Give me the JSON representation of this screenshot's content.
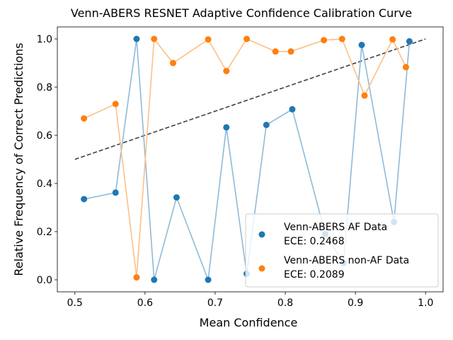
{
  "chart_data": {
    "type": "line",
    "title": "Venn-ABERS RESNET Adaptive Confidence Calibration Curve",
    "xlabel": "Mean Confidence",
    "ylabel": "Relative Frequency of Correct Predictions",
    "xlim": [
      0.475,
      1.025
    ],
    "ylim": [
      -0.05,
      1.05
    ],
    "xticks": [
      "0.5",
      "0.6",
      "0.7",
      "0.8",
      "0.9",
      "1.0"
    ],
    "xtick_values": [
      0.5,
      0.6,
      0.7,
      0.8,
      0.9,
      1.0
    ],
    "yticks": [
      "0.0",
      "0.2",
      "0.4",
      "0.6",
      "0.8",
      "1.0"
    ],
    "ytick_values": [
      0.0,
      0.2,
      0.4,
      0.6,
      0.8,
      1.0
    ],
    "grid": false,
    "legend_position": "lower-right",
    "reference_line": {
      "x": [
        0.5,
        1.0
      ],
      "y": [
        0.5,
        1.0
      ],
      "color": "#404040",
      "style": "dashed"
    },
    "series": [
      {
        "name": "Venn-ABERS AF Data",
        "ece_label": "ECE: 0.2468",
        "color": "#1f77b4",
        "line_color": "#8fbad9",
        "x": [
          0.513,
          0.558,
          0.588,
          0.613,
          0.645,
          0.69,
          0.716,
          0.745,
          0.773,
          0.81,
          0.857,
          0.883,
          0.909,
          0.955,
          0.977
        ],
        "y": [
          0.335,
          0.362,
          1.0,
          0.0,
          0.342,
          0.0,
          0.633,
          0.025,
          0.643,
          0.708,
          0.19,
          0.07,
          0.975,
          0.24,
          0.99
        ]
      },
      {
        "name": "Venn-ABERS non-AF Data",
        "ece_label": "ECE: 0.2089",
        "color": "#ff7f0e",
        "line_color": "#ffbf86",
        "x": [
          0.513,
          0.558,
          0.588,
          0.613,
          0.64,
          0.69,
          0.716,
          0.745,
          0.786,
          0.808,
          0.855,
          0.881,
          0.913,
          0.953,
          0.972
        ],
        "y": [
          0.67,
          0.73,
          0.01,
          1.0,
          0.9,
          0.998,
          0.867,
          1.0,
          0.948,
          0.948,
          0.995,
          1.0,
          0.765,
          0.998,
          0.883
        ]
      }
    ]
  }
}
